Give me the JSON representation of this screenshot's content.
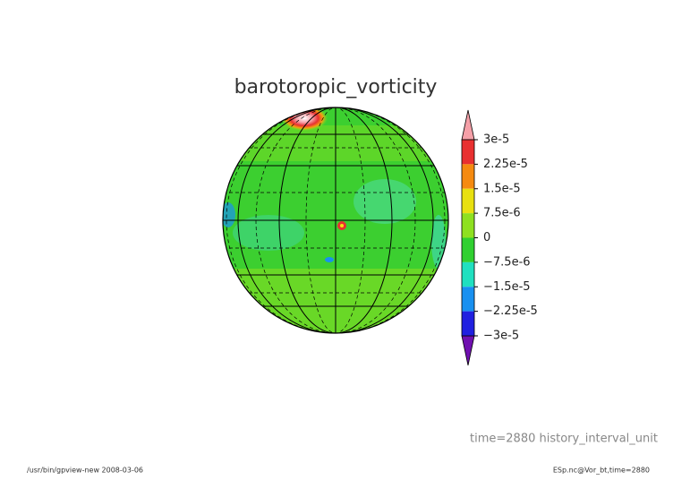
{
  "chart_data": {
    "type": "globe-contour",
    "title": "barotoropic_vorticity",
    "colorbar": {
      "lim": [
        -3e-05,
        3e-05
      ],
      "ticks": [
        {
          "value": 3e-05,
          "label": "3e-5"
        },
        {
          "value": 2.25e-05,
          "label": "2.25e-5"
        },
        {
          "value": 1.5e-05,
          "label": "1.5e-5"
        },
        {
          "value": 7.5e-06,
          "label": "7.5e-6"
        },
        0,
        {
          "value": -7.5e-06,
          "label": "−7.5e-6"
        },
        {
          "value": -1.5e-05,
          "label": "−1.5e-5"
        },
        {
          "value": -2.25e-05,
          "label": "−2.25e-5"
        },
        {
          "value": -3e-05,
          "label": "−3e-5"
        }
      ],
      "colors": [
        "#f5a0a8",
        "#e83030",
        "#f58a10",
        "#e8e010",
        "#8ee020",
        "#30d030",
        "#20e0c0",
        "#1890f0",
        "#2020e0",
        "#7010b0"
      ]
    },
    "time_label": "time=2880  history_interval_unit",
    "footer_left": "/usr/bin/gpview-new  2008-03-06",
    "footer_right": "ESp.nc@Vor_bt,time=2880"
  }
}
